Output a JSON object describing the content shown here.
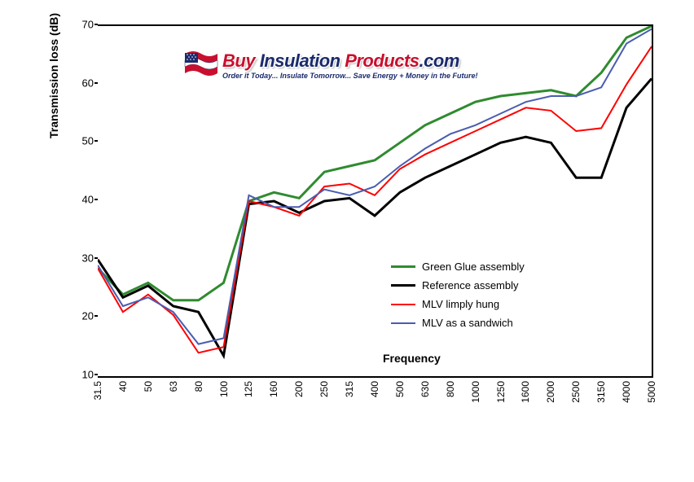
{
  "chart": {
    "type": "line",
    "background_color": "#ffffff",
    "axis_color": "#000000",
    "line_width": 2.5,
    "x": {
      "label": "Frequency",
      "label_fontsize": 14,
      "categories": [
        "31.5",
        "40",
        "50",
        "63",
        "80",
        "100",
        "125",
        "160",
        "200",
        "250",
        "315",
        "400",
        "500",
        "630",
        "800",
        "1000",
        "1250",
        "1600",
        "2000",
        "2500",
        "3150",
        "4000",
        "5000"
      ],
      "tick_fontsize": 12,
      "tick_rotation": -90
    },
    "y": {
      "label": "Transmission loss (dB)",
      "label_fontsize": 14,
      "min": 10,
      "max": 70,
      "tick_step": 10,
      "tick_fontsize": 13
    },
    "series": [
      {
        "name": "Green Glue assembly",
        "color": "#2f8b2f",
        "width": 3,
        "values": [
          28.5,
          24,
          26,
          23,
          23,
          26,
          40,
          41.5,
          40.5,
          45,
          46,
          47,
          50,
          53,
          55,
          57,
          58,
          58.5,
          59,
          58,
          62,
          68,
          70
        ]
      },
      {
        "name": "Reference assembly",
        "color": "#000000",
        "width": 3,
        "values": [
          30,
          23.5,
          25.5,
          22,
          21,
          13.5,
          39.5,
          40,
          38,
          40,
          40.5,
          37.5,
          41.5,
          44,
          46,
          48,
          50,
          51,
          50,
          44,
          44,
          56,
          61
        ]
      },
      {
        "name": "MLV limply hung",
        "color": "#ff0000",
        "width": 2,
        "values": [
          28.5,
          21,
          24,
          20.5,
          14,
          15,
          40,
          39,
          37.5,
          42.5,
          43,
          41,
          45.5,
          48,
          50,
          52,
          54,
          56,
          55.5,
          52,
          52.5,
          60,
          66.5
        ]
      },
      {
        "name": "MLV as a sandwich",
        "color": "#4a5db0",
        "width": 2,
        "values": [
          29,
          22,
          23.5,
          21,
          15.5,
          16.5,
          41,
          39,
          39,
          42,
          41,
          42.5,
          46,
          49,
          51.5,
          53,
          55,
          57,
          58,
          58,
          59.5,
          67,
          69.5
        ]
      }
    ],
    "legend": {
      "position": "inside-center",
      "fontsize": 13
    }
  },
  "logo": {
    "segments": [
      {
        "text": "Buy ",
        "color": "#c8102e"
      },
      {
        "text": "Insulation ",
        "color": "#1a2a6c"
      },
      {
        "text": "Products",
        "color": "#c8102e"
      },
      {
        "text": ".com",
        "color": "#1a2a6c"
      }
    ],
    "tagline": "Order it Today... Insulate Tomorrow... Save Energy + Money in the Future!",
    "flag_colors": {
      "red": "#c8102e",
      "white": "#ffffff",
      "blue": "#1a2a6c"
    }
  }
}
